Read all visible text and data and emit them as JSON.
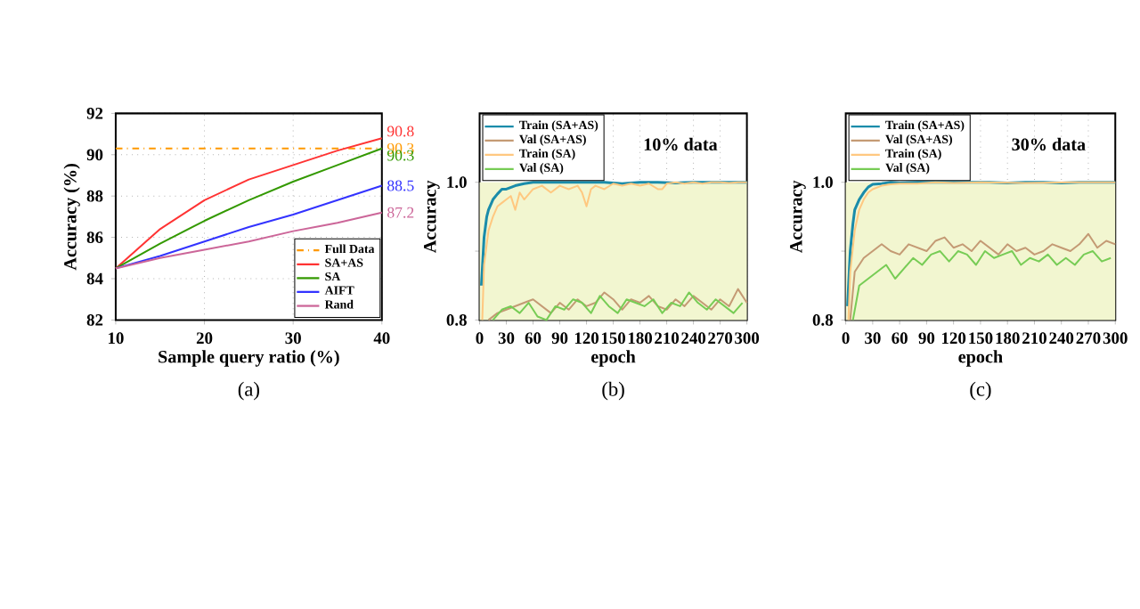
{
  "chart_data": [
    {
      "type": "line",
      "xlabel": "Sample query ratio (%)",
      "ylabel": "Accuracy (%)",
      "x": [
        10,
        15,
        20,
        25,
        30,
        35,
        40
      ],
      "xlim": [
        10,
        40
      ],
      "ylim": [
        82,
        92
      ],
      "xticks": [
        10,
        20,
        30,
        40
      ],
      "yticks": [
        82,
        84,
        86,
        88,
        90,
        92
      ],
      "grid": true,
      "legend": "bottom right",
      "annotations": [
        "(a)"
      ],
      "series": [
        {
          "name": "Full Data",
          "color": "#ff9900",
          "line_style": "dashed",
          "x": [
            10,
            40
          ],
          "values": [
            90.3,
            90.3
          ],
          "value_labels": [
            null,
            "90.3"
          ]
        },
        {
          "name": "SA+AS",
          "color": "#ff3333",
          "values": [
            84.5,
            86.4,
            87.8,
            88.8,
            89.5,
            90.2,
            90.8
          ],
          "value_labels": [
            null,
            null,
            null,
            null,
            null,
            null,
            "90.8"
          ]
        },
        {
          "name": "SA",
          "color": "#339900",
          "values": [
            84.5,
            85.7,
            86.8,
            87.8,
            88.7,
            89.5,
            90.3
          ],
          "value_labels": [
            null,
            null,
            null,
            null,
            null,
            null,
            "90.3"
          ]
        },
        {
          "name": "AIFT",
          "color": "#3333ff",
          "values": [
            84.5,
            85.1,
            85.8,
            86.5,
            87.1,
            87.8,
            88.5
          ],
          "value_labels": [
            null,
            null,
            null,
            null,
            null,
            null,
            "88.5"
          ]
        },
        {
          "name": "Rand",
          "color": "#cc6699",
          "values": [
            84.5,
            85.0,
            85.4,
            85.8,
            86.3,
            86.7,
            87.2
          ],
          "value_labels": [
            null,
            null,
            null,
            null,
            null,
            null,
            "87.2"
          ]
        }
      ]
    },
    {
      "type": "line",
      "xlabel": "epoch",
      "ylabel": "Accuracy",
      "xlim": [
        0,
        300
      ],
      "ylim": [
        0.8,
        1.1
      ],
      "xticks": [
        0,
        30,
        60,
        90,
        120,
        150,
        180,
        210,
        240,
        270,
        300
      ],
      "yticks": [
        {
          "value": 0.8,
          "label": "0.8"
        },
        {
          "value": 0.9,
          "label": null
        },
        {
          "value": 1.0,
          "label": "1.0"
        }
      ],
      "grid": "x",
      "legend": "top left",
      "annotations": [
        "10% data",
        "(b)"
      ],
      "bands": [
        {
          "axis": "y",
          "from": 0.8,
          "to": 1.0,
          "color": "#f2f6d0"
        }
      ],
      "series": [
        {
          "name": "Train (SA+AS)",
          "color": "#1a8caa",
          "x": [
            2,
            5,
            8,
            10,
            15,
            20,
            25,
            30,
            40,
            50,
            60,
            80,
            100,
            120,
            140,
            160,
            180,
            200,
            220,
            240,
            260,
            280,
            300
          ],
          "values": [
            0.85,
            0.92,
            0.95,
            0.96,
            0.975,
            0.983,
            0.99,
            0.99,
            0.995,
            0.998,
            1.0,
            1.0,
            1.0,
            1.0,
            1.0,
            0.998,
            1.0,
            1.0,
            0.999,
            1.0,
            1.0,
            1.0,
            1.0
          ]
        },
        {
          "name": "Val (SA+AS)",
          "color": "#c49a74",
          "x": [
            10,
            20,
            30,
            40,
            50,
            60,
            70,
            80,
            90,
            100,
            110,
            120,
            130,
            140,
            150,
            160,
            170,
            180,
            190,
            200,
            210,
            220,
            230,
            240,
            250,
            260,
            270,
            280,
            290,
            300
          ],
          "values": [
            0.8,
            0.81,
            0.815,
            0.82,
            0.825,
            0.83,
            0.82,
            0.81,
            0.825,
            0.815,
            0.83,
            0.82,
            0.825,
            0.84,
            0.83,
            0.815,
            0.83,
            0.825,
            0.835,
            0.82,
            0.815,
            0.83,
            0.82,
            0.835,
            0.825,
            0.815,
            0.83,
            0.82,
            0.845,
            0.825
          ]
        },
        {
          "name": "Train (SA)",
          "color": "#ffc880",
          "x": [
            3,
            5,
            10,
            15,
            20,
            25,
            30,
            35,
            40,
            45,
            50,
            60,
            70,
            80,
            90,
            100,
            110,
            115,
            120,
            125,
            130,
            140,
            150,
            160,
            170,
            180,
            190,
            200,
            205,
            210,
            220,
            230,
            240,
            250,
            260,
            270,
            280,
            290,
            300
          ],
          "values": [
            0.8,
            0.88,
            0.93,
            0.95,
            0.965,
            0.97,
            0.975,
            0.98,
            0.96,
            0.985,
            0.975,
            0.99,
            0.995,
            0.985,
            0.995,
            0.99,
            0.995,
            0.985,
            0.965,
            0.99,
            0.995,
            0.99,
            0.998,
            0.995,
            0.998,
            0.995,
            0.998,
            0.99,
            0.99,
            0.998,
            1.0,
            0.998,
            1.0,
            0.998,
            1.0,
            1.0,
            0.999,
            1.0,
            1.0
          ]
        },
        {
          "name": "Val (SA)",
          "color": "#77cc55",
          "x": [
            15,
            25,
            35,
            45,
            55,
            65,
            75,
            85,
            95,
            105,
            115,
            125,
            135,
            145,
            155,
            165,
            175,
            185,
            195,
            205,
            215,
            225,
            235,
            245,
            255,
            265,
            275,
            285,
            295
          ],
          "values": [
            0.8,
            0.815,
            0.82,
            0.81,
            0.825,
            0.805,
            0.8,
            0.82,
            0.815,
            0.83,
            0.825,
            0.81,
            0.835,
            0.82,
            0.81,
            0.83,
            0.825,
            0.82,
            0.83,
            0.81,
            0.825,
            0.82,
            0.84,
            0.825,
            0.815,
            0.83,
            0.82,
            0.81,
            0.825
          ]
        }
      ]
    },
    {
      "type": "line",
      "xlabel": "epoch",
      "ylabel": "Accuracy",
      "xlim": [
        0,
        300
      ],
      "ylim": [
        0.8,
        1.1
      ],
      "xticks": [
        0,
        30,
        60,
        90,
        120,
        150,
        180,
        210,
        240,
        270,
        300
      ],
      "yticks": [
        {
          "value": 0.8,
          "label": "0.8"
        },
        {
          "value": 0.9,
          "label": null
        },
        {
          "value": 1.0,
          "label": "1.0"
        }
      ],
      "grid": "x",
      "legend": "top left",
      "annotations": [
        "30% data",
        "(c)"
      ],
      "bands": [
        {
          "axis": "y",
          "from": 0.8,
          "to": 1.0,
          "color": "#f2f6d0"
        }
      ],
      "series": [
        {
          "name": "Train (SA+AS)",
          "color": "#1a8caa",
          "x": [
            2,
            5,
            8,
            10,
            15,
            20,
            25,
            30,
            40,
            50,
            60,
            80,
            100,
            120,
            140,
            160,
            180,
            200,
            220,
            240,
            260,
            280,
            300
          ],
          "values": [
            0.82,
            0.9,
            0.94,
            0.96,
            0.975,
            0.985,
            0.993,
            0.997,
            0.998,
            1.0,
            0.999,
            1.0,
            1.0,
            1.0,
            1.0,
            1.0,
            0.999,
            1.0,
            1.0,
            0.999,
            1.0,
            1.0,
            1.0
          ]
        },
        {
          "name": "Val (SA+AS)",
          "color": "#c49a74",
          "x": [
            5,
            10,
            20,
            30,
            40,
            50,
            60,
            70,
            80,
            90,
            100,
            110,
            120,
            130,
            140,
            150,
            160,
            170,
            180,
            190,
            200,
            210,
            220,
            230,
            240,
            250,
            260,
            270,
            280,
            290,
            300
          ],
          "values": [
            0.8,
            0.87,
            0.89,
            0.9,
            0.91,
            0.9,
            0.895,
            0.91,
            0.905,
            0.9,
            0.915,
            0.92,
            0.905,
            0.91,
            0.9,
            0.915,
            0.905,
            0.895,
            0.91,
            0.9,
            0.905,
            0.895,
            0.9,
            0.91,
            0.905,
            0.9,
            0.91,
            0.925,
            0.905,
            0.915,
            0.91
          ]
        },
        {
          "name": "Train (SA)",
          "color": "#ffc880",
          "x": [
            3,
            5,
            10,
            15,
            20,
            25,
            30,
            40,
            50,
            60,
            80,
            100,
            120,
            150,
            200,
            250,
            300
          ],
          "values": [
            0.8,
            0.87,
            0.93,
            0.96,
            0.975,
            0.985,
            0.99,
            0.995,
            0.997,
            0.998,
            0.998,
            1.0,
            0.999,
            1.0,
            0.999,
            1.0,
            1.0
          ]
        },
        {
          "name": "Val (SA)",
          "color": "#77cc55",
          "x": [
            8,
            15,
            25,
            35,
            45,
            55,
            65,
            75,
            85,
            95,
            105,
            115,
            125,
            135,
            145,
            155,
            165,
            175,
            185,
            195,
            205,
            215,
            225,
            235,
            245,
            255,
            265,
            275,
            285,
            295
          ],
          "values": [
            0.8,
            0.85,
            0.86,
            0.87,
            0.88,
            0.86,
            0.875,
            0.89,
            0.88,
            0.895,
            0.9,
            0.885,
            0.9,
            0.895,
            0.88,
            0.9,
            0.89,
            0.895,
            0.9,
            0.88,
            0.89,
            0.885,
            0.895,
            0.88,
            0.89,
            0.88,
            0.895,
            0.9,
            0.885,
            0.89
          ]
        }
      ]
    }
  ]
}
